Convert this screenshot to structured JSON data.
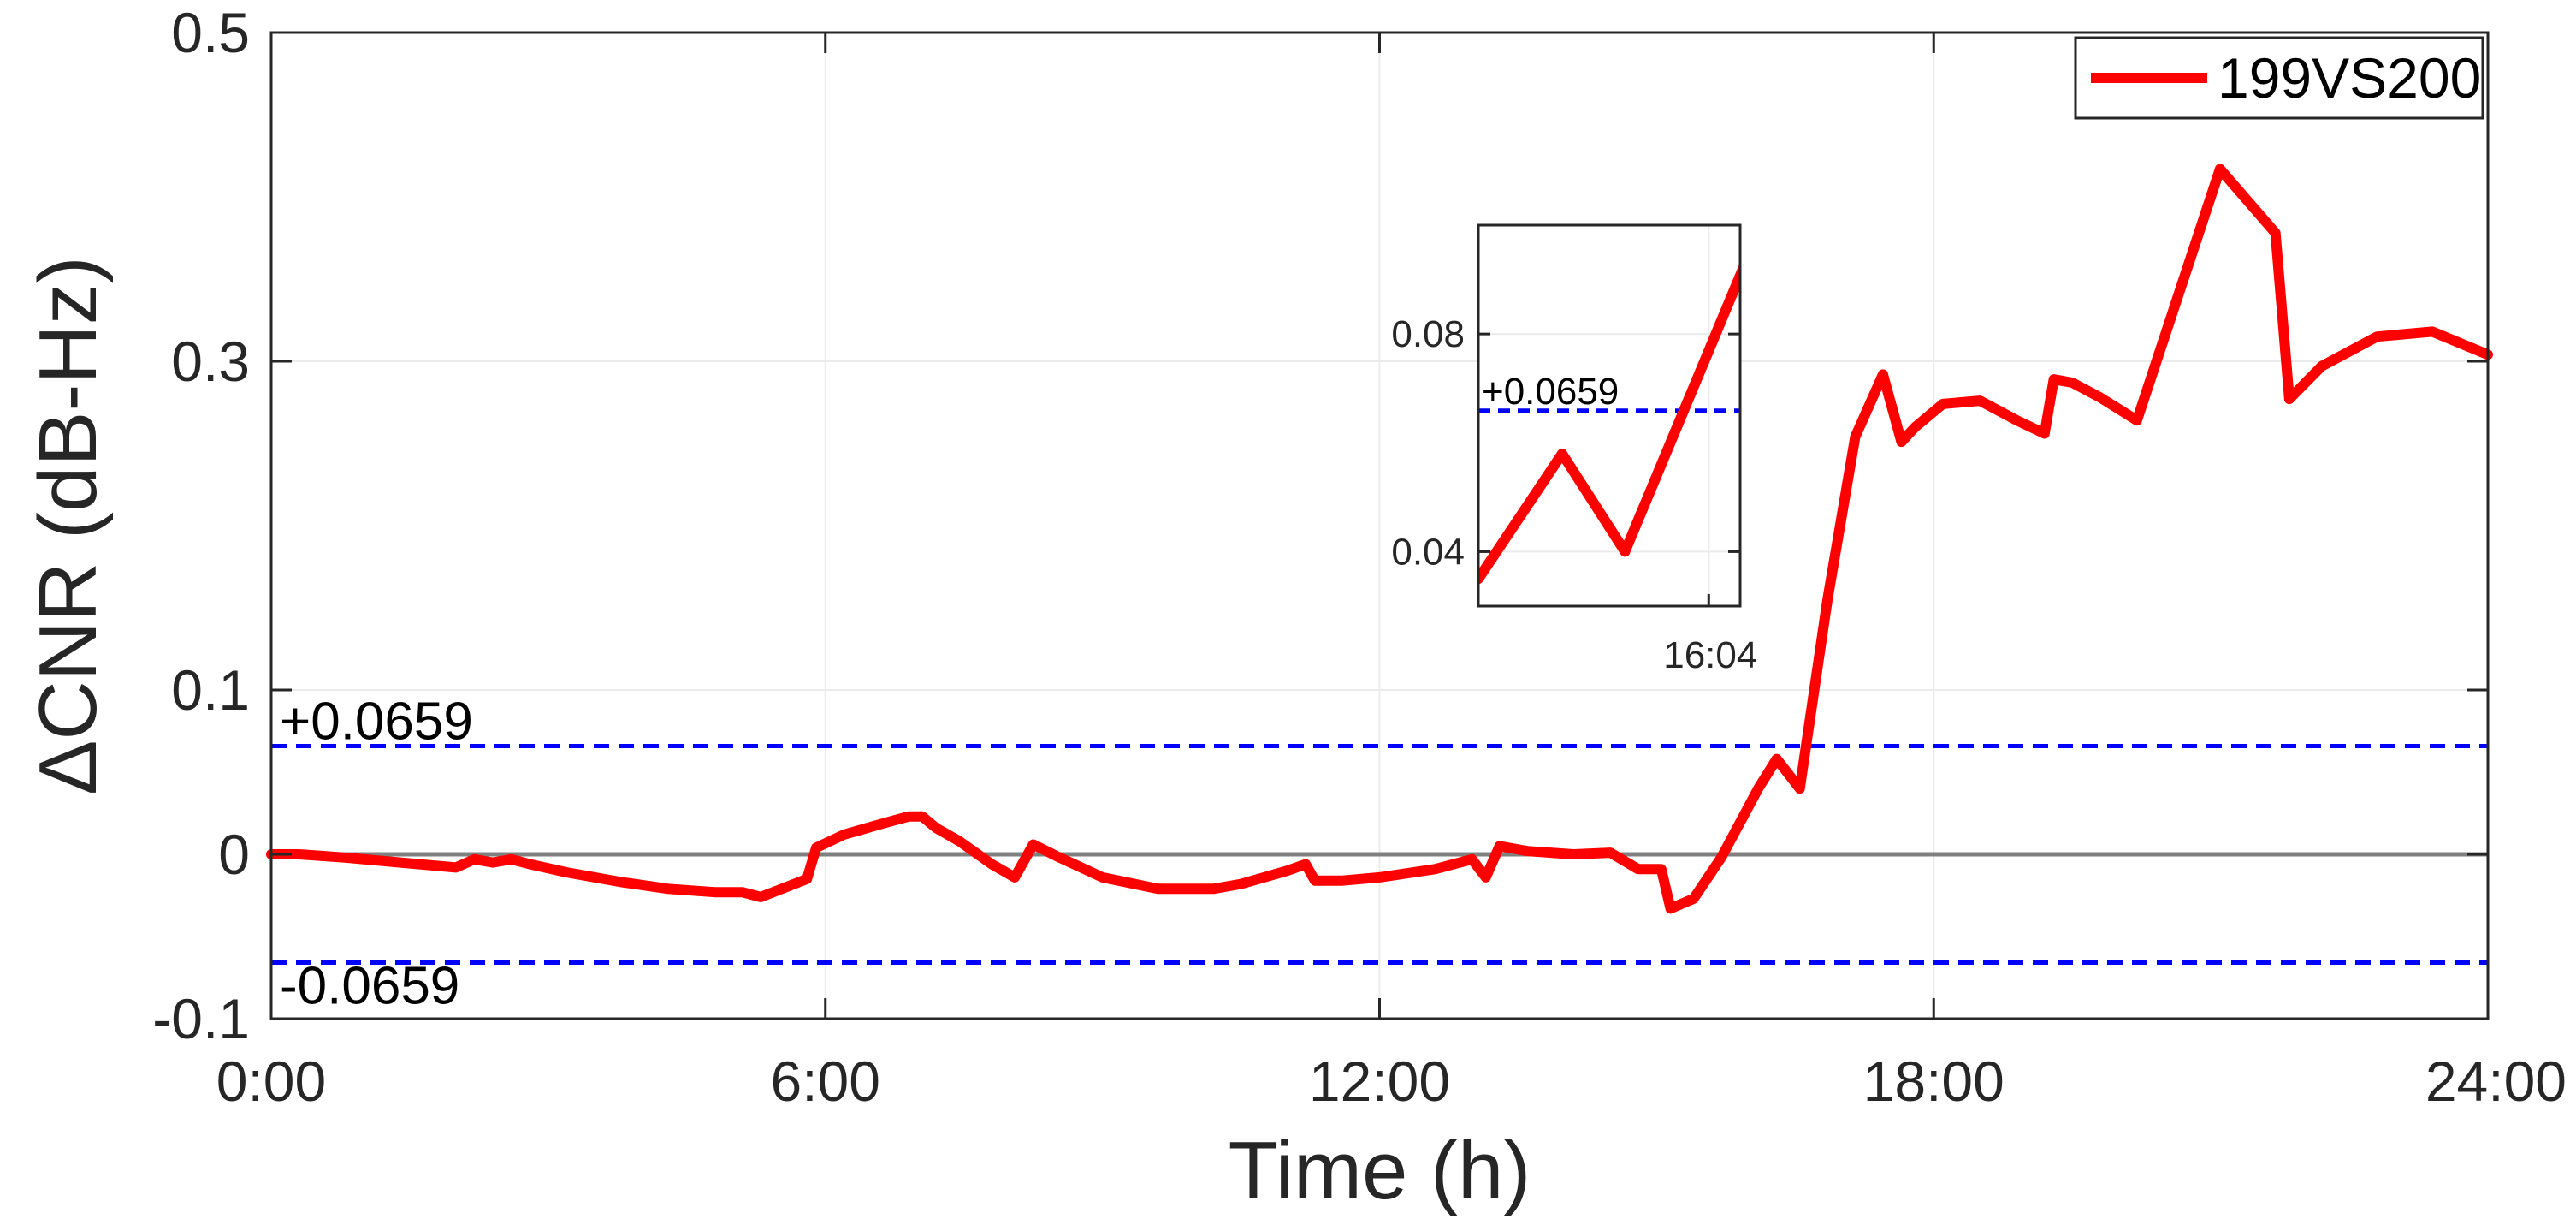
{
  "chart_data": [
    {
      "type": "line",
      "xlabel": "Time (h)",
      "ylabel": "ΔCNR (dB-Hz)",
      "xlim": [
        0,
        24
      ],
      "ylim": [
        -0.1,
        0.5
      ],
      "x_ticks": [
        0,
        6,
        12,
        18,
        24
      ],
      "x_tick_labels": [
        "0:00",
        "6:00",
        "12:00",
        "18:00",
        "24:00"
      ],
      "y_ticks": [
        -0.1,
        0,
        0.1,
        0.3,
        0.5
      ],
      "y_tick_labels": [
        "-0.1",
        "0",
        "0.1",
        "0.3",
        "0.5"
      ],
      "grid": true,
      "legend_position": "top-right",
      "series": [
        {
          "name": "199VS200",
          "color": "#ff0000",
          "x": [
            0,
            0.3,
            0.8,
            1.4,
            2.0,
            2.2,
            2.4,
            2.6,
            2.8,
            3.2,
            3.8,
            4.3,
            4.8,
            5.1,
            5.3,
            5.8,
            5.9,
            6.2,
            6.45,
            6.7,
            6.9,
            7.05,
            7.2,
            7.45,
            7.8,
            8.05,
            8.25,
            8.5,
            9.0,
            9.6,
            10.2,
            10.5,
            11.0,
            11.2,
            11.3,
            11.6,
            12.0,
            12.6,
            13.0,
            13.15,
            13.3,
            13.6,
            14.1,
            14.5,
            14.8,
            15.05,
            15.15,
            15.4,
            15.7,
            16.1,
            16.3,
            16.55,
            16.85,
            17.15,
            17.45,
            17.65,
            17.8,
            18.1,
            18.5,
            18.9,
            19.2,
            19.3,
            19.5,
            19.8,
            20.2,
            21.1,
            21.7,
            21.85,
            22.2,
            22.8,
            23.4,
            24.0
          ],
          "y": [
            0,
            0,
            -0.002,
            -0.005,
            -0.008,
            -0.003,
            -0.005,
            -0.003,
            -0.006,
            -0.011,
            -0.017,
            -0.021,
            -0.023,
            -0.023,
            -0.026,
            -0.015,
            0.004,
            0.012,
            0.016,
            0.02,
            0.023,
            0.023,
            0.016,
            0.008,
            -0.006,
            -0.014,
            0.006,
            -0.001,
            -0.014,
            -0.021,
            -0.021,
            -0.018,
            -0.01,
            -0.006,
            -0.016,
            -0.016,
            -0.014,
            -0.009,
            -0.003,
            -0.014,
            0.005,
            0.002,
            0,
            0.001,
            -0.009,
            -0.009,
            -0.033,
            -0.027,
            -0.002,
            0.04,
            0.058,
            0.04,
            0.155,
            0.254,
            0.292,
            0.251,
            0.26,
            0.274,
            0.276,
            0.264,
            0.256,
            0.289,
            0.287,
            0.278,
            0.264,
            0.417,
            0.378,
            0.277,
            0.297,
            0.315,
            0.318,
            0.304
          ]
        }
      ],
      "reference_lines": [
        {
          "value": 0.0659,
          "label": "+0.0659",
          "color": "#0000ff",
          "style": "dashed"
        },
        {
          "value": -0.0659,
          "label": "-0.0659",
          "color": "#0000ff",
          "style": "dashed"
        },
        {
          "value": 0,
          "color": "#808080",
          "style": "solid"
        }
      ]
    },
    {
      "type": "line",
      "xlim": [
        15.85,
        16.1
      ],
      "ylim": [
        0.03,
        0.1
      ],
      "x_ticks": [
        16.07
      ],
      "x_tick_labels": [
        "16:04"
      ],
      "y_ticks": [
        0.04,
        0.08
      ],
      "y_tick_labels": [
        "0.04",
        "0.08"
      ],
      "grid": true,
      "series": [
        {
          "name": "199VS200",
          "color": "#ff0000",
          "x": [
            15.85,
            15.93,
            15.99,
            16.12
          ],
          "y": [
            0.035,
            0.058,
            0.04,
            0.1
          ]
        }
      ],
      "reference_lines": [
        {
          "value": 0.0659,
          "label": "+0.0659",
          "color": "#0000ff",
          "style": "dashed"
        }
      ]
    }
  ]
}
